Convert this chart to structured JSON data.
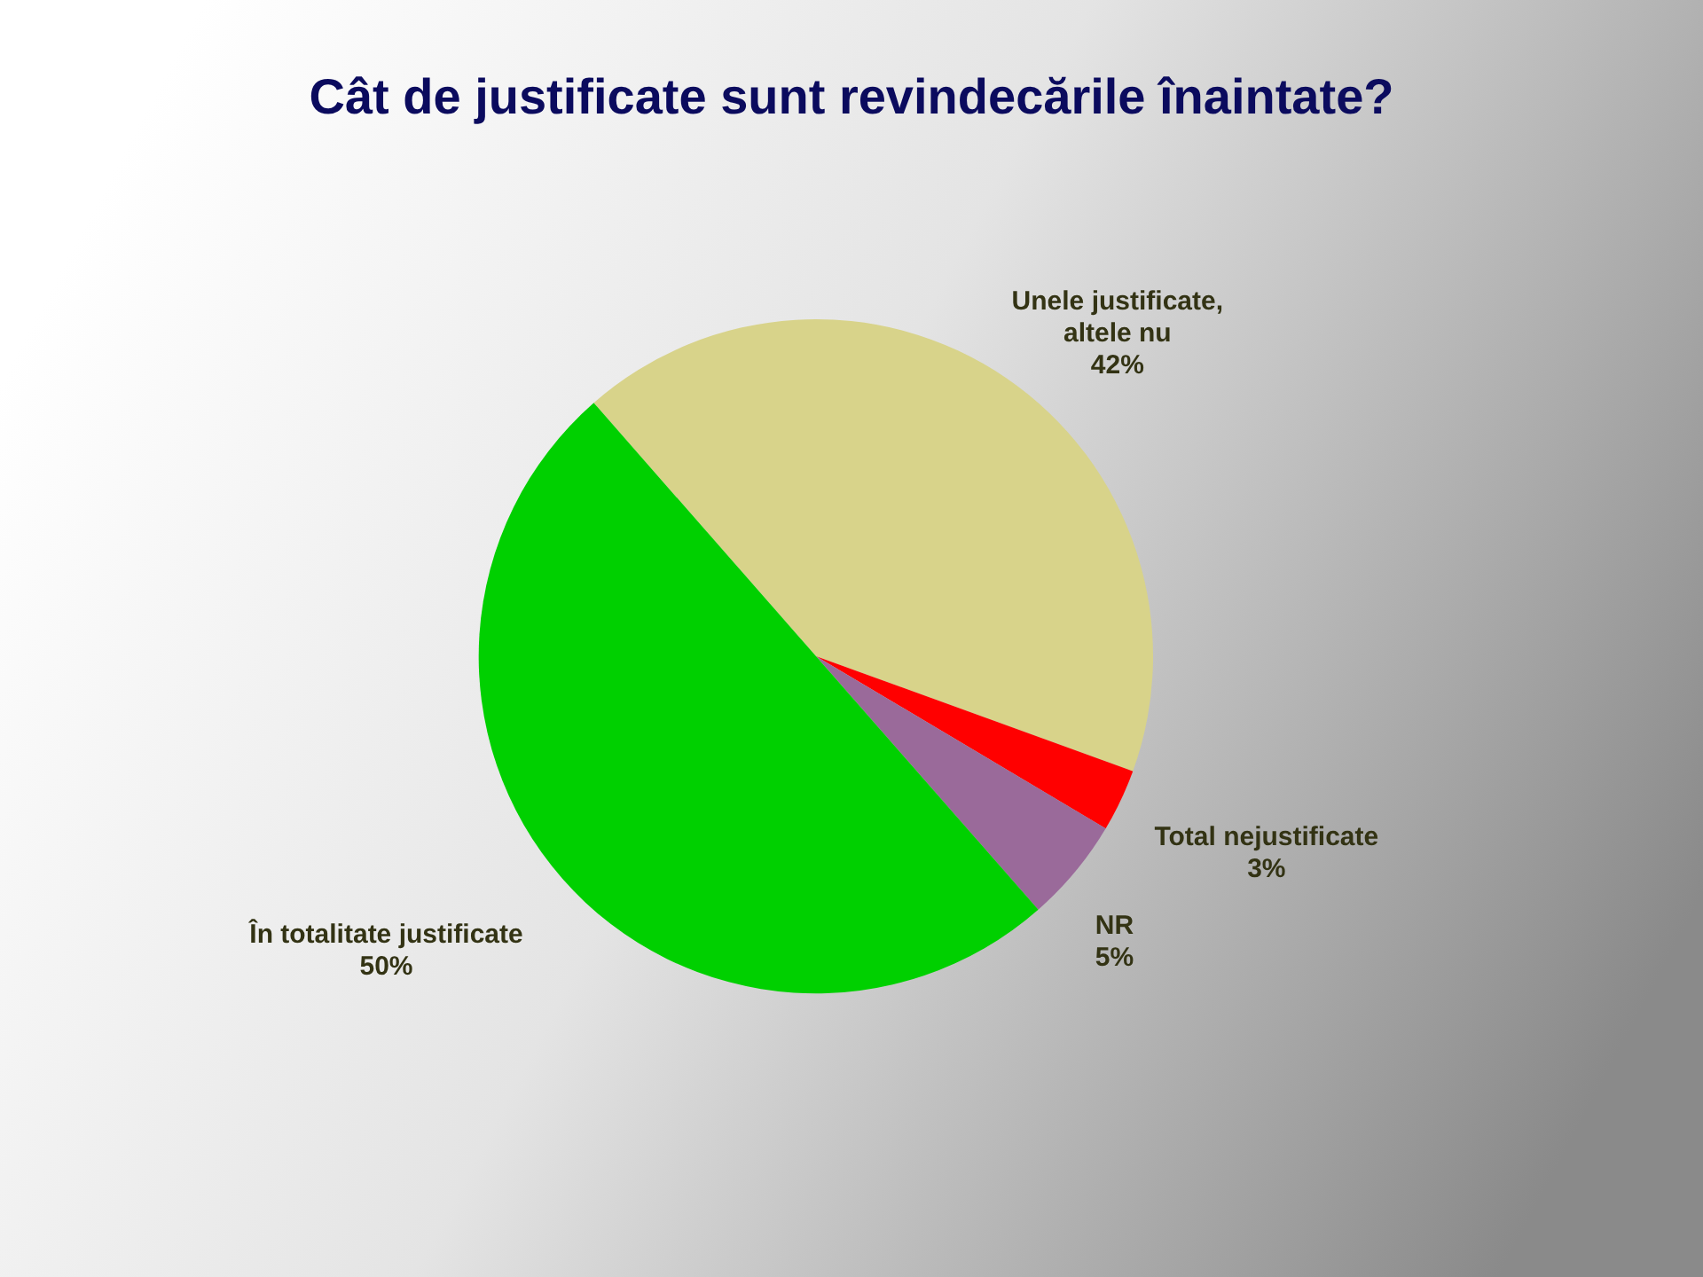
{
  "chart_data": {
    "type": "pie",
    "title": "Cât de justificate sunt revindecările înaintate?",
    "categories": [
      "Unele justificate,\naltele nu",
      "Total nejustificate",
      "NR",
      "În totalitate justificate"
    ],
    "values": [
      42,
      3,
      5,
      50
    ],
    "colors": [
      "#d8d38a",
      "#ff0000",
      "#9a6a9a",
      "#00d000"
    ],
    "value_labels": [
      "42%",
      "3%",
      "5%",
      "50%"
    ]
  }
}
